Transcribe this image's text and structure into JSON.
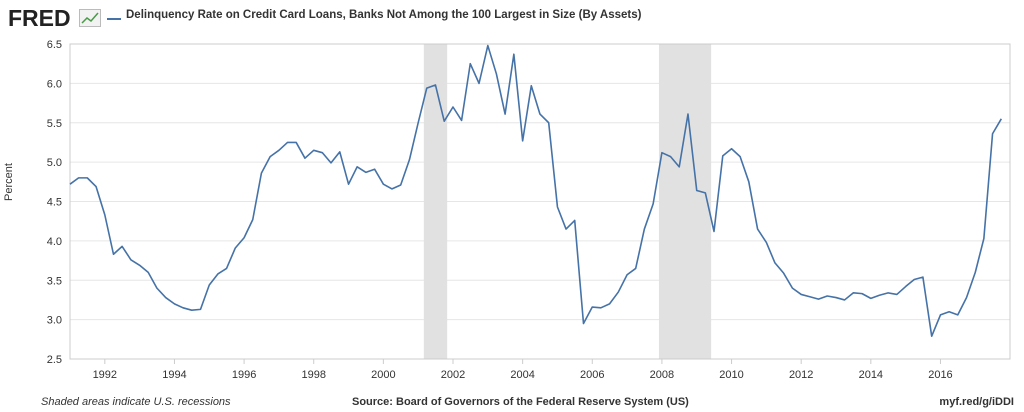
{
  "brand": {
    "logo_text": "FRED"
  },
  "footer": {
    "recession_note": "Shaded areas indicate U.S. recessions",
    "source": "Source: Board of Governors of the Federal Reserve System (US)",
    "link": "myf.red/g/iDDI"
  },
  "colors": {
    "series": "#4572a7",
    "recession": "#e1e1e1",
    "grid": "#e6e6e6"
  },
  "chart_data": {
    "type": "line",
    "title": "",
    "xlabel": "",
    "ylabel": "Percent",
    "ylim": [
      2.5,
      6.5
    ],
    "xlim": [
      "1991-01-01",
      "2017-12-31"
    ],
    "yticks": [
      "2.5",
      "3.0",
      "3.5",
      "4.0",
      "4.5",
      "5.0",
      "5.5",
      "6.0",
      "6.5"
    ],
    "xticks": [
      "1992",
      "1994",
      "1996",
      "1998",
      "2000",
      "2002",
      "2004",
      "2006",
      "2008",
      "2010",
      "2012",
      "2014",
      "2016"
    ],
    "grid": true,
    "legend": "top-left",
    "recessions": [
      {
        "start": "2001-03-01",
        "end": "2001-11-01"
      },
      {
        "start": "2007-12-01",
        "end": "2009-06-01"
      }
    ],
    "series": [
      {
        "name": "Delinquency Rate on Credit Card Loans, Banks Not Among the 100 Largest in Size (By Assets)",
        "x": [
          "1991-01-01",
          "1991-04-01",
          "1991-07-01",
          "1991-10-01",
          "1992-01-01",
          "1992-04-01",
          "1992-07-01",
          "1992-10-01",
          "1993-01-01",
          "1993-04-01",
          "1993-07-01",
          "1993-10-01",
          "1994-01-01",
          "1994-04-01",
          "1994-07-01",
          "1994-10-01",
          "1995-01-01",
          "1995-04-01",
          "1995-07-01",
          "1995-10-01",
          "1996-01-01",
          "1996-04-01",
          "1996-07-01",
          "1996-10-01",
          "1997-01-01",
          "1997-04-01",
          "1997-07-01",
          "1997-10-01",
          "1998-01-01",
          "1998-04-01",
          "1998-07-01",
          "1998-10-01",
          "1999-01-01",
          "1999-04-01",
          "1999-07-01",
          "1999-10-01",
          "2000-01-01",
          "2000-04-01",
          "2000-07-01",
          "2000-10-01",
          "2001-01-01",
          "2001-04-01",
          "2001-07-01",
          "2001-10-01",
          "2002-01-01",
          "2002-04-01",
          "2002-07-01",
          "2002-10-01",
          "2003-01-01",
          "2003-04-01",
          "2003-07-01",
          "2003-10-01",
          "2004-01-01",
          "2004-04-01",
          "2004-07-01",
          "2004-10-01",
          "2005-01-01",
          "2005-04-01",
          "2005-07-01",
          "2005-10-01",
          "2006-01-01",
          "2006-04-01",
          "2006-07-01",
          "2006-10-01",
          "2007-01-01",
          "2007-04-01",
          "2007-07-01",
          "2007-10-01",
          "2008-01-01",
          "2008-04-01",
          "2008-07-01",
          "2008-10-01",
          "2009-01-01",
          "2009-04-01",
          "2009-07-01",
          "2009-10-01",
          "2010-01-01",
          "2010-04-01",
          "2010-07-01",
          "2010-10-01",
          "2011-01-01",
          "2011-04-01",
          "2011-07-01",
          "2011-10-01",
          "2012-01-01",
          "2012-04-01",
          "2012-07-01",
          "2012-10-01",
          "2013-01-01",
          "2013-04-01",
          "2013-07-01",
          "2013-10-01",
          "2014-01-01",
          "2014-04-01",
          "2014-07-01",
          "2014-10-01",
          "2015-01-01",
          "2015-04-01",
          "2015-07-01",
          "2015-10-01",
          "2016-01-01",
          "2016-04-01",
          "2016-07-01",
          "2016-10-01",
          "2017-01-01",
          "2017-04-01",
          "2017-07-01",
          "2017-10-01"
        ],
        "values": [
          4.72,
          4.8,
          4.8,
          4.69,
          4.33,
          3.83,
          3.93,
          3.76,
          3.69,
          3.6,
          3.4,
          3.28,
          3.2,
          3.15,
          3.12,
          3.13,
          3.44,
          3.58,
          3.65,
          3.91,
          4.04,
          4.27,
          4.86,
          5.07,
          5.15,
          5.25,
          5.25,
          5.05,
          5.15,
          5.12,
          4.99,
          5.13,
          4.72,
          4.94,
          4.87,
          4.91,
          4.72,
          4.66,
          4.71,
          5.03,
          5.5,
          5.94,
          5.98,
          5.52,
          5.7,
          5.53,
          6.25,
          6.0,
          6.48,
          6.12,
          5.61,
          6.37,
          5.27,
          5.97,
          5.61,
          5.5,
          4.43,
          4.15,
          4.26,
          2.95,
          3.16,
          3.15,
          3.2,
          3.35,
          3.57,
          3.65,
          4.15,
          4.47,
          5.12,
          5.07,
          4.94,
          5.61,
          4.64,
          4.61,
          4.12,
          5.08,
          5.17,
          5.07,
          4.75,
          4.15,
          3.98,
          3.72,
          3.59,
          3.4,
          3.32,
          3.29,
          3.26,
          3.3,
          3.28,
          3.25,
          3.34,
          3.33,
          3.27,
          3.31,
          3.34,
          3.32,
          3.42,
          3.51,
          3.54,
          2.79,
          3.06,
          3.1,
          3.06,
          3.28,
          3.6,
          4.03,
          5.36,
          5.55
        ]
      }
    ]
  }
}
